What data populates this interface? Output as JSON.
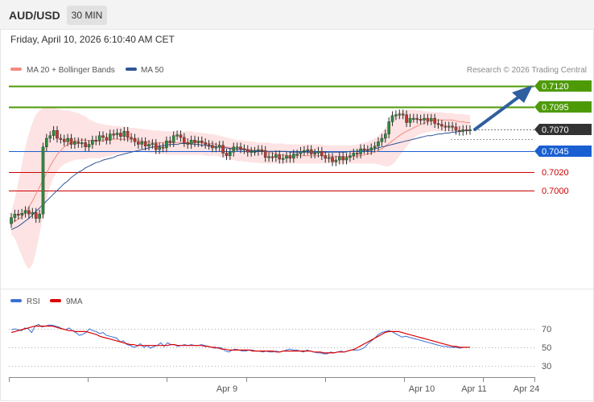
{
  "header": {
    "symbol": "AUD/USD",
    "timeframe": "30 MIN",
    "date": "Friday, April 10, 2026 6:10:40 AM CET"
  },
  "chart_data": [
    {
      "type": "candlestick",
      "legend": [
        {
          "label": "MA 20 + Bollinger Bands",
          "color": "#f28b82"
        },
        {
          "label": "MA 50",
          "color": "#2f5597"
        }
      ],
      "watermark": "Research © 2026 Trading Central",
      "x_tick_labels": [
        "Apr 9",
        "Apr 10",
        "Apr 11",
        "Apr 24"
      ],
      "levels": [
        {
          "label": "0.7120",
          "style": "resistance",
          "color": "#4e9a06"
        },
        {
          "label": "0.7095",
          "style": "resistance",
          "color": "#4e9a06"
        },
        {
          "label": "0.7070",
          "style": "current",
          "color": "#333333"
        },
        {
          "label": "0.7045",
          "style": "pivot",
          "color": "#1a5fd1"
        },
        {
          "label": "0.7020",
          "style": "support",
          "color": "#cc0000"
        },
        {
          "label": "0.7000",
          "style": "support",
          "color": "#cc0000"
        }
      ],
      "close": [
        0.6969,
        0.6973,
        0.6972,
        0.6974,
        0.6977,
        0.6973,
        0.6975,
        0.6968,
        0.6973,
        0.705,
        0.706,
        0.7063,
        0.7069,
        0.706,
        0.7059,
        0.7056,
        0.706,
        0.7053,
        0.7056,
        0.7054,
        0.7055,
        0.705,
        0.7053,
        0.7058,
        0.7057,
        0.7063,
        0.7061,
        0.7058,
        0.7065,
        0.7064,
        0.7066,
        0.7062,
        0.7068,
        0.7061,
        0.706,
        0.7056,
        0.7053,
        0.7056,
        0.7051,
        0.7053,
        0.7054,
        0.7047,
        0.705,
        0.7049,
        0.7057,
        0.7055,
        0.7063,
        0.7064,
        0.7061,
        0.7055,
        0.7053,
        0.7058,
        0.7055,
        0.7057,
        0.7055,
        0.7053,
        0.7052,
        0.7049,
        0.705,
        0.7052,
        0.7043,
        0.704,
        0.7044,
        0.705,
        0.705,
        0.7048,
        0.7047,
        0.7044,
        0.7045,
        0.7045,
        0.7047,
        0.7046,
        0.7038,
        0.7039,
        0.7038,
        0.7041,
        0.7036,
        0.7037,
        0.704,
        0.7037,
        0.7042,
        0.7042,
        0.7045,
        0.7046,
        0.7047,
        0.7042,
        0.7043,
        0.7045,
        0.704,
        0.7037,
        0.7038,
        0.7033,
        0.7035,
        0.7039,
        0.7035,
        0.7038,
        0.704,
        0.7043,
        0.7042,
        0.7048,
        0.7047,
        0.7046,
        0.7049,
        0.7051,
        0.7056,
        0.706,
        0.7065,
        0.7079,
        0.7086,
        0.7087,
        0.7088,
        0.7087,
        0.7078,
        0.7083,
        0.7083,
        0.7082,
        0.7081,
        0.7083,
        0.708,
        0.7083,
        0.7077,
        0.7076,
        0.7074,
        0.7073,
        0.7074,
        0.7073,
        0.7069,
        0.7068,
        0.707,
        0.7069,
        0.707
      ],
      "open": [
        0.6962,
        0.6969,
        0.6973,
        0.6972,
        0.6974,
        0.6977,
        0.6973,
        0.6975,
        0.6968,
        0.6973,
        0.705,
        0.706,
        0.7063,
        0.7069,
        0.706,
        0.7059,
        0.7056,
        0.706,
        0.7053,
        0.7056,
        0.7054,
        0.7055,
        0.705,
        0.7053,
        0.7058,
        0.7057,
        0.7063,
        0.7061,
        0.7058,
        0.7065,
        0.7064,
        0.7066,
        0.7062,
        0.7068,
        0.7061,
        0.706,
        0.7056,
        0.7053,
        0.7056,
        0.7051,
        0.7053,
        0.7054,
        0.7047,
        0.705,
        0.7049,
        0.7057,
        0.7055,
        0.7063,
        0.7064,
        0.7061,
        0.7055,
        0.7053,
        0.7058,
        0.7055,
        0.7057,
        0.7055,
        0.7053,
        0.7052,
        0.7049,
        0.705,
        0.7052,
        0.7043,
        0.704,
        0.7044,
        0.705,
        0.705,
        0.7048,
        0.7047,
        0.7044,
        0.7045,
        0.7045,
        0.7047,
        0.7046,
        0.7038,
        0.7039,
        0.7038,
        0.7041,
        0.7036,
        0.7037,
        0.704,
        0.7037,
        0.7042,
        0.7042,
        0.7045,
        0.7046,
        0.7047,
        0.7042,
        0.7043,
        0.7045,
        0.704,
        0.7037,
        0.7038,
        0.7033,
        0.7035,
        0.7039,
        0.7035,
        0.7038,
        0.704,
        0.7043,
        0.7042,
        0.7048,
        0.7047,
        0.7046,
        0.7049,
        0.7051,
        0.7056,
        0.706,
        0.7065,
        0.7079,
        0.7086,
        0.7087,
        0.7088,
        0.7087,
        0.7078,
        0.7083,
        0.7083,
        0.7082,
        0.7081,
        0.7083,
        0.708,
        0.7083,
        0.7077,
        0.7076,
        0.7074,
        0.7073,
        0.7074,
        0.7073,
        0.7069,
        0.7068,
        0.707,
        0.7069
      ],
      "ma20": [
        0.6962,
        0.6965,
        0.6967,
        0.697,
        0.6975,
        0.6981,
        0.6988,
        0.6996,
        0.7004,
        0.7012,
        0.702,
        0.7028,
        0.7035,
        0.7041,
        0.7046,
        0.705,
        0.7053,
        0.7055,
        0.7057,
        0.7058,
        0.7058,
        0.7058,
        0.7057,
        0.7057,
        0.7057,
        0.7057,
        0.7057,
        0.7058,
        0.7058,
        0.7059,
        0.7059,
        0.7059,
        0.7059,
        0.7059,
        0.7059,
        0.7058,
        0.7058,
        0.7057,
        0.7056,
        0.7056,
        0.7055,
        0.7055,
        0.7055,
        0.7055,
        0.7055,
        0.7055,
        0.7055,
        0.7055,
        0.7055,
        0.7055,
        0.7055,
        0.7055,
        0.7055,
        0.7055,
        0.7055,
        0.7054,
        0.7054,
        0.7054,
        0.7053,
        0.7052,
        0.7051,
        0.705,
        0.7049,
        0.7049,
        0.7049,
        0.7048,
        0.7048,
        0.7047,
        0.7047,
        0.7046,
        0.7046,
        0.7046,
        0.7045,
        0.7044,
        0.7043,
        0.7042,
        0.7041,
        0.7041,
        0.704,
        0.704,
        0.704,
        0.704,
        0.704,
        0.704,
        0.704,
        0.704,
        0.704,
        0.704,
        0.704,
        0.704,
        0.704,
        0.7039,
        0.7039,
        0.7039,
        0.7039,
        0.7039,
        0.7039,
        0.7039,
        0.704,
        0.704,
        0.7041,
        0.7042,
        0.7043,
        0.7044,
        0.7046,
        0.7048,
        0.7051,
        0.7054,
        0.7057,
        0.706,
        0.7063,
        0.7066,
        0.7068,
        0.707,
        0.7072,
        0.7074,
        0.7076,
        0.7077,
        0.7079,
        0.708,
        0.708,
        0.7081,
        0.7081,
        0.7081,
        0.7081,
        0.7081,
        0.708,
        0.7079,
        0.7079,
        0.7078,
        0.7078
      ],
      "upper": [
        0.6975,
        0.699,
        0.701,
        0.703,
        0.705,
        0.7065,
        0.7078,
        0.7087,
        0.7092,
        0.7095,
        0.7096,
        0.7096,
        0.7095,
        0.7094,
        0.7093,
        0.7092,
        0.7092,
        0.7091,
        0.709,
        0.7089,
        0.7087,
        0.7085,
        0.7082,
        0.708,
        0.7078,
        0.7077,
        0.7076,
        0.7075,
        0.7075,
        0.7074,
        0.7074,
        0.7074,
        0.7073,
        0.7073,
        0.7072,
        0.7072,
        0.7071,
        0.7071,
        0.707,
        0.707,
        0.7069,
        0.7069,
        0.7069,
        0.7068,
        0.7068,
        0.7068,
        0.7068,
        0.7068,
        0.7068,
        0.7068,
        0.7068,
        0.7068,
        0.7067,
        0.7067,
        0.7066,
        0.7066,
        0.7065,
        0.7065,
        0.7064,
        0.7063,
        0.7062,
        0.7061,
        0.706,
        0.7059,
        0.7058,
        0.7058,
        0.7057,
        0.7057,
        0.7056,
        0.7056,
        0.7055,
        0.7055,
        0.7055,
        0.7055,
        0.7054,
        0.7054,
        0.7054,
        0.7054,
        0.7053,
        0.7053,
        0.7053,
        0.7053,
        0.7053,
        0.7053,
        0.7053,
        0.7053,
        0.7053,
        0.7053,
        0.7053,
        0.7052,
        0.7052,
        0.7052,
        0.7052,
        0.7052,
        0.7052,
        0.7052,
        0.7052,
        0.7052,
        0.7053,
        0.7054,
        0.7055,
        0.7056,
        0.7058,
        0.706,
        0.7063,
        0.7067,
        0.7072,
        0.7077,
        0.7082,
        0.7087,
        0.709,
        0.7092,
        0.7093,
        0.7093,
        0.7093,
        0.7092,
        0.7092,
        0.7091,
        0.7091,
        0.709,
        0.709,
        0.709,
        0.709,
        0.7089,
        0.7089,
        0.7089,
        0.7088,
        0.7088,
        0.7088,
        0.7087,
        0.7087
      ],
      "lower": [
        0.695,
        0.6945,
        0.6935,
        0.6925,
        0.6915,
        0.691,
        0.6915,
        0.693,
        0.695,
        0.697,
        0.699,
        0.7005,
        0.7015,
        0.7022,
        0.7027,
        0.703,
        0.7032,
        0.7034,
        0.7035,
        0.7036,
        0.7036,
        0.7036,
        0.7037,
        0.7037,
        0.7037,
        0.7037,
        0.7038,
        0.7039,
        0.704,
        0.7041,
        0.7042,
        0.7043,
        0.7043,
        0.7044,
        0.7044,
        0.7044,
        0.7044,
        0.7044,
        0.7044,
        0.7043,
        0.7043,
        0.7042,
        0.7042,
        0.7042,
        0.7041,
        0.7041,
        0.7041,
        0.7041,
        0.7041,
        0.7041,
        0.7041,
        0.7041,
        0.7041,
        0.7041,
        0.7041,
        0.704,
        0.704,
        0.704,
        0.704,
        0.7039,
        0.7038,
        0.7037,
        0.7036,
        0.7035,
        0.7034,
        0.7034,
        0.7033,
        0.7033,
        0.7032,
        0.7032,
        0.7032,
        0.7031,
        0.7031,
        0.7031,
        0.7031,
        0.7031,
        0.7031,
        0.7031,
        0.7031,
        0.7031,
        0.7031,
        0.7031,
        0.7031,
        0.7031,
        0.7031,
        0.7031,
        0.7031,
        0.7031,
        0.7031,
        0.7031,
        0.7031,
        0.7031,
        0.7031,
        0.7031,
        0.7031,
        0.7031,
        0.7031,
        0.7031,
        0.7031,
        0.7031,
        0.7031,
        0.7031,
        0.7031,
        0.7031,
        0.703,
        0.7029,
        0.7028,
        0.7028,
        0.703,
        0.7034,
        0.704,
        0.7045,
        0.705,
        0.7055,
        0.706,
        0.7063,
        0.7065,
        0.7066,
        0.7067,
        0.7068,
        0.7068,
        0.7068,
        0.7068,
        0.7068,
        0.7068,
        0.7068,
        0.7068,
        0.7068,
        0.7068,
        0.7068,
        0.7068
      ],
      "ma50": [
        0.6955,
        0.6957,
        0.6959,
        0.6962,
        0.6965,
        0.6968,
        0.6972,
        0.6976,
        0.698,
        0.6984,
        0.6988,
        0.6992,
        0.6996,
        0.7,
        0.7004,
        0.7008,
        0.7011,
        0.7015,
        0.7018,
        0.7021,
        0.7023,
        0.7026,
        0.7028,
        0.703,
        0.7032,
        0.7033,
        0.7035,
        0.7036,
        0.7037,
        0.7038,
        0.704,
        0.7041,
        0.7042,
        0.7043,
        0.7044,
        0.7045,
        0.7046,
        0.7047,
        0.7048,
        0.7049,
        0.705,
        0.705,
        0.7051,
        0.7052,
        0.7052,
        0.7053,
        0.7053,
        0.7053,
        0.7054,
        0.7054,
        0.7054,
        0.7054,
        0.7053,
        0.7053,
        0.7052,
        0.7052,
        0.7051,
        0.7051,
        0.705,
        0.705,
        0.7049,
        0.7049,
        0.7048,
        0.7048,
        0.7047,
        0.7047,
        0.7047,
        0.7046,
        0.7046,
        0.7046,
        0.7045,
        0.7045,
        0.7045,
        0.7045,
        0.7045,
        0.7045,
        0.7045,
        0.7045,
        0.7045,
        0.7044,
        0.7044,
        0.7044,
        0.7044,
        0.7044,
        0.7044,
        0.7044,
        0.7044,
        0.7044,
        0.7044,
        0.7044,
        0.7044,
        0.7044,
        0.7044,
        0.7044,
        0.7044,
        0.7044,
        0.7045,
        0.7045,
        0.7045,
        0.7046,
        0.7046,
        0.7047,
        0.7047,
        0.7048,
        0.7049,
        0.705,
        0.7051,
        0.7052,
        0.7053,
        0.7054,
        0.7055,
        0.7056,
        0.7057,
        0.7058,
        0.7059,
        0.706,
        0.7061,
        0.7062,
        0.7063,
        0.7063,
        0.7064,
        0.7065,
        0.7065,
        0.7066,
        0.7066,
        0.7067,
        0.7067,
        0.7068,
        0.7068,
        0.7069,
        0.7069
      ]
    },
    {
      "type": "line",
      "legend": [
        {
          "label": "RSI",
          "color": "#3b6fd6"
        },
        {
          "label": "9MA",
          "color": "#dd0000"
        }
      ],
      "y_tick_labels": [
        "70",
        "50",
        "30"
      ],
      "ylim": [
        20,
        80
      ],
      "rsi": [
        69,
        70,
        69,
        68,
        71,
        70,
        66,
        73,
        75,
        72,
        73,
        74,
        74,
        73,
        72,
        70,
        69,
        71,
        68,
        66,
        63,
        64,
        66,
        70,
        68,
        67,
        65,
        66,
        63,
        62,
        61,
        60,
        56,
        57,
        53,
        52,
        50,
        51,
        54,
        50,
        52,
        49,
        51,
        52,
        55,
        51,
        55,
        53,
        53,
        51,
        52,
        53,
        52,
        53,
        52,
        52,
        53,
        52,
        51,
        50,
        49,
        50,
        49,
        46,
        45,
        47,
        48,
        47,
        46,
        46,
        47,
        47,
        46,
        46,
        45,
        46,
        45,
        45,
        46,
        45,
        46,
        47,
        48,
        47,
        47,
        46,
        45,
        47,
        46,
        45,
        44,
        44,
        43,
        43,
        45,
        44,
        45,
        46,
        45,
        46,
        47,
        47,
        47,
        48,
        50,
        54,
        57,
        60,
        64,
        66,
        67,
        68,
        67,
        65,
        63,
        61,
        62,
        61,
        60,
        59,
        58,
        57,
        56,
        55,
        54,
        53,
        52,
        51,
        51,
        50,
        50,
        50,
        49,
        50,
        50,
        50
      ],
      "ma9": [
        66,
        67,
        68,
        69,
        70,
        71,
        72,
        73,
        73,
        73,
        73,
        73,
        73,
        72,
        71,
        70,
        69,
        68,
        68,
        67,
        67,
        67,
        67,
        66,
        65,
        64,
        62,
        61,
        60,
        59,
        58,
        57,
        56,
        55,
        54,
        53,
        53,
        52,
        52,
        52,
        52,
        52,
        52,
        52,
        52,
        52,
        52,
        53,
        53,
        52,
        52,
        52,
        52,
        52,
        52,
        52,
        52,
        51,
        51,
        50,
        50,
        49,
        48,
        48,
        47,
        47,
        47,
        47,
        47,
        47,
        47,
        46,
        46,
        46,
        46,
        46,
        46,
        46,
        45,
        45,
        46,
        46,
        46,
        46,
        46,
        46,
        46,
        46,
        46,
        45,
        45,
        45,
        44,
        44,
        44,
        44,
        45,
        45,
        45,
        46,
        47,
        48,
        50,
        52,
        54,
        56,
        58,
        60,
        62,
        64,
        66,
        67,
        67,
        67,
        67,
        66,
        65,
        64,
        63,
        62,
        61,
        60,
        59,
        58,
        57,
        56,
        55,
        54,
        53,
        52,
        51,
        51,
        50,
        50,
        50,
        50
      ]
    }
  ]
}
